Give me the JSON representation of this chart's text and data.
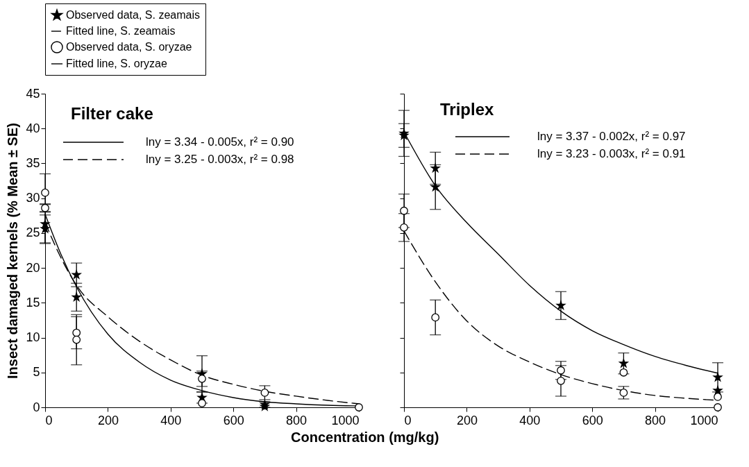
{
  "chart_data": [
    {
      "type": "scatter",
      "title": "Filter cake",
      "xlabel": "Concentration (mg/kg)",
      "ylabel": "Insect damaged kernels (% Mean ± SE)",
      "legend": "top",
      "xlim": [
        0,
        1000
      ],
      "ylim": [
        0,
        45
      ],
      "xticks": [
        0,
        200,
        400,
        600,
        800,
        1000
      ],
      "yticks": [
        0,
        5,
        10,
        15,
        20,
        25,
        30,
        35,
        40,
        45
      ],
      "annotations": [
        "lny = 3.34 -  0.005x,  r² = 0.90",
        "lny = 3.25 -  0.003x,  r² = 0.98"
      ],
      "series": [
        {
          "name": "Observed data, S. zeamais",
          "type": "scatter",
          "marker": "star",
          "color": "#000000",
          "x": [
            0,
            0,
            100,
            100,
            500,
            500,
            700,
            700
          ],
          "values": [
            26.3,
            25.6,
            19.0,
            15.8,
            4.8,
            1.4,
            0.4,
            0.1
          ],
          "errors": [
            2.8,
            2.0,
            1.7,
            2.0,
            2.6,
            0.8,
            0.4,
            null
          ]
        },
        {
          "name": "Fitted line, S. zeamais",
          "type": "line",
          "line_style": "dashed",
          "color": "#000000",
          "x": [
            0,
            50,
            100,
            200,
            300,
            400,
            500,
            600,
            700,
            800,
            900,
            1000
          ],
          "values": [
            26.5,
            21.5,
            17.5,
            13,
            9.5,
            6.8,
            4.6,
            3.3,
            2.3,
            1.6,
            1.0,
            0.5
          ]
        },
        {
          "name": "Observed data, S. oryzae",
          "type": "scatter",
          "marker": "circle",
          "color": "#000000",
          "x": [
            0,
            0,
            100,
            100,
            500,
            500,
            700,
            1000
          ],
          "values": [
            30.8,
            28.6,
            10.7,
            9.7,
            4.1,
            0.6,
            2.1,
            0
          ],
          "errors": [
            2.7,
            0.6,
            2.3,
            3.6,
            1.1,
            null,
            1.0,
            null
          ]
        },
        {
          "name": "Fitted line, S. oryzae",
          "type": "line",
          "line_style": "solid",
          "color": "#000000",
          "x": [
            0,
            50,
            100,
            200,
            300,
            400,
            500,
            600,
            700,
            800,
            900,
            1000
          ],
          "values": [
            27.7,
            22,
            17.3,
            10.5,
            6.5,
            3.9,
            2.4,
            1.4,
            0.8,
            0.5,
            0.3,
            0.2
          ]
        }
      ]
    },
    {
      "type": "scatter",
      "title": "Triplex",
      "tick_labels": "x",
      "xlim": [
        0,
        1000
      ],
      "ylim": [
        0,
        45
      ],
      "xticks": [
        0,
        200,
        400,
        600,
        800,
        1000
      ],
      "yticks": [
        0,
        5,
        10,
        15,
        20,
        25,
        30,
        35,
        40,
        45
      ],
      "annotations": [
        "lny = 3.37 -  0.002x,  r² = 0.97",
        "lny = 3.23 -  0.003x,  r² = 0.91"
      ],
      "series": [
        {
          "type": "scatter",
          "marker": "star",
          "color": "#000000",
          "x": [
            0,
            0,
            100,
            100,
            500,
            700,
            1000,
            1000
          ],
          "values": [
            39.3,
            39.0,
            34.3,
            31.6,
            14.6,
            6.3,
            4.3,
            2.4
          ],
          "errors": [
            3.3,
            1.7,
            2.3,
            3.2,
            2.0,
            1.5,
            2.1,
            null
          ]
        },
        {
          "type": "line",
          "line_style": "dashed",
          "color": "#000000",
          "x": [
            0,
            100,
            200,
            300,
            400,
            500,
            600,
            700,
            800,
            900,
            1000
          ],
          "values": [
            25.3,
            18,
            12.4,
            8.8,
            6.5,
            4.7,
            3.4,
            2.4,
            1.7,
            1.3,
            1.0
          ]
        },
        {
          "type": "scatter",
          "marker": "circle",
          "color": "#000000",
          "x": [
            0,
            0,
            100,
            500,
            500,
            700,
            700,
            1000,
            1000
          ],
          "values": [
            28.2,
            25.8,
            12.9,
            5.3,
            3.8,
            5.0,
            2.1,
            1.5,
            0
          ],
          "errors": [
            2.4,
            2.0,
            2.5,
            1.3,
            2.2,
            null,
            0.9,
            null,
            null
          ]
        },
        {
          "type": "line",
          "line_style": "solid",
          "color": "#000000",
          "x": [
            0,
            100,
            200,
            300,
            400,
            500,
            600,
            700,
            800,
            900,
            1000
          ],
          "values": [
            39.5,
            31.8,
            26.5,
            22,
            17.5,
            13.8,
            11,
            9,
            7.3,
            6,
            4.9
          ]
        }
      ]
    }
  ]
}
